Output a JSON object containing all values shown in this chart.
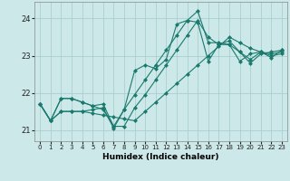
{
  "xlabel": "Humidex (Indice chaleur)",
  "background_color": "#cce8e8",
  "grid_color": "#aacece",
  "line_color": "#1a7a6e",
  "xlim": [
    -0.5,
    23.5
  ],
  "ylim": [
    20.7,
    24.45
  ],
  "yticks": [
    21,
    22,
    23,
    24
  ],
  "xticks": [
    0,
    1,
    2,
    3,
    4,
    5,
    6,
    7,
    8,
    9,
    10,
    11,
    12,
    13,
    14,
    15,
    16,
    17,
    18,
    19,
    20,
    21,
    22,
    23
  ],
  "series": [
    [
      21.7,
      21.25,
      21.85,
      21.85,
      21.75,
      21.65,
      21.7,
      21.1,
      21.55,
      22.6,
      22.75,
      22.65,
      22.9,
      23.85,
      23.95,
      24.2,
      23.35,
      23.35,
      23.3,
      22.85,
      23.05,
      23.1,
      22.95,
      23.15
    ],
    [
      21.7,
      21.25,
      21.85,
      21.85,
      21.75,
      21.65,
      21.55,
      21.1,
      21.1,
      21.6,
      21.95,
      22.35,
      22.75,
      23.15,
      23.55,
      23.95,
      23.5,
      23.3,
      23.3,
      23.1,
      22.9,
      23.1,
      23.05,
      23.1
    ],
    [
      21.7,
      21.25,
      21.5,
      21.5,
      21.5,
      21.55,
      21.6,
      21.05,
      21.55,
      21.95,
      22.35,
      22.75,
      23.15,
      23.55,
      23.95,
      23.9,
      22.85,
      23.3,
      23.4,
      23.1,
      22.8,
      23.05,
      23.1,
      23.15
    ],
    [
      21.7,
      21.25,
      21.5,
      21.5,
      21.5,
      21.45,
      21.4,
      21.35,
      21.3,
      21.25,
      21.5,
      21.75,
      22.0,
      22.25,
      22.5,
      22.75,
      23.0,
      23.25,
      23.5,
      23.35,
      23.2,
      23.1,
      23.0,
      23.05
    ]
  ]
}
